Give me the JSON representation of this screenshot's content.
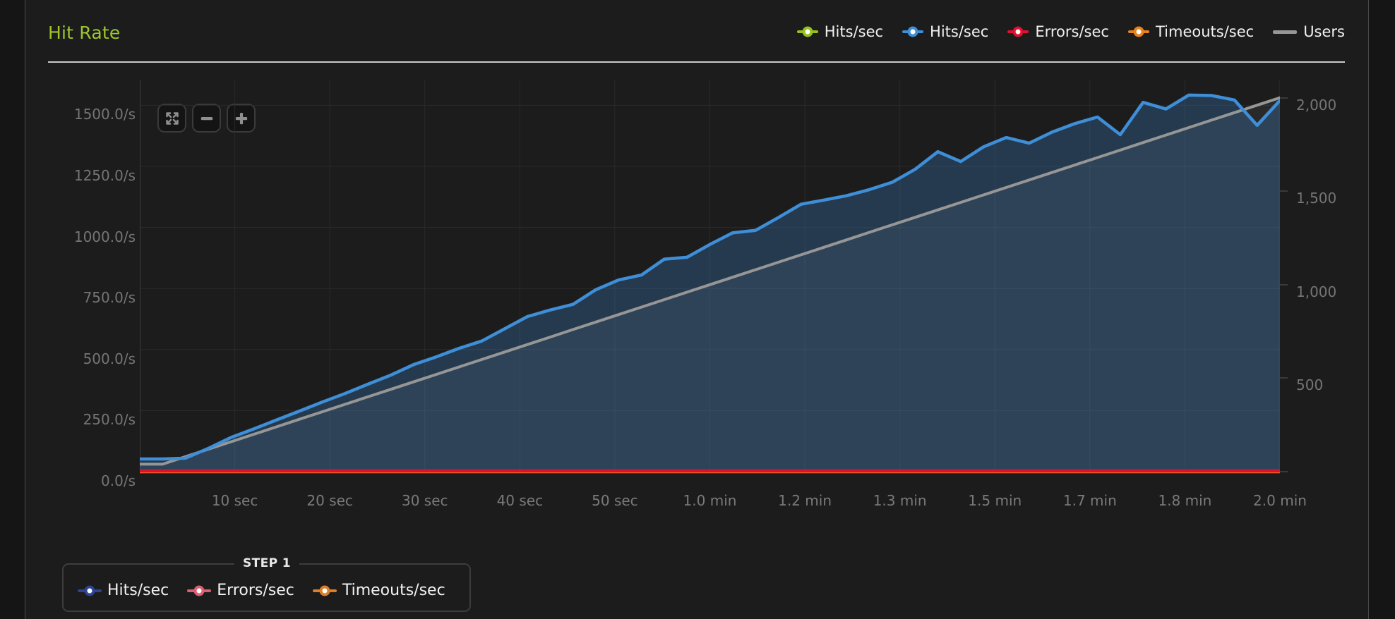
{
  "header": {
    "title": "Hit Rate",
    "title_color": "#9dc62d",
    "legend": [
      {
        "label": "Hits/sec",
        "color": "#95c11f",
        "marker": "dot"
      },
      {
        "label": "Hits/sec",
        "color": "#3e8ed8",
        "marker": "dot"
      },
      {
        "label": "Errors/sec",
        "color": "#e01130",
        "marker": "dot"
      },
      {
        "label": "Timeouts/sec",
        "color": "#e8821c",
        "marker": "dot"
      },
      {
        "label": "Users",
        "color": "#969696",
        "marker": "line"
      }
    ]
  },
  "toolbar": {
    "buttons": [
      {
        "name": "reset-zoom",
        "icon": "expand-icon"
      },
      {
        "name": "zoom-out",
        "icon": "minus-icon"
      },
      {
        "name": "zoom-in",
        "icon": "plus-icon"
      }
    ]
  },
  "chart_data": {
    "type": "area",
    "title": "Hit Rate",
    "legend_position": "top-right",
    "grid": true,
    "x_unit": "time (sec)",
    "x_range_seconds": [
      0,
      120
    ],
    "x_seconds": [
      0,
      2.4,
      4.8,
      7.2,
      9.6,
      12,
      14.4,
      16.8,
      19.2,
      21.6,
      24,
      26.4,
      28.8,
      31.2,
      33.6,
      36,
      38.4,
      40.8,
      43.2,
      45.6,
      48,
      50.4,
      52.8,
      55.2,
      57.6,
      60,
      62.4,
      64.8,
      67.2,
      69.6,
      72,
      74.4,
      76.8,
      79.2,
      81.6,
      84,
      86.4,
      88.8,
      91.2,
      93.6,
      96,
      98.4,
      100.8,
      103.2,
      105.6,
      108,
      110.4,
      112.8,
      115.2,
      117.6,
      120
    ],
    "series": [
      {
        "name": "Hits/sec",
        "axis": "left",
        "color": "#3e8ed8",
        "fill": "rgba(62,142,216,0.27)",
        "values": [
          52,
          52,
          55,
          95,
          140,
          175,
          212,
          248,
          285,
          320,
          358,
          395,
          438,
          470,
          505,
          535,
          585,
          635,
          662,
          685,
          745,
          785,
          805,
          870,
          878,
          930,
          978,
          988,
          1040,
          1095,
          1112,
          1130,
          1155,
          1185,
          1238,
          1310,
          1270,
          1330,
          1368,
          1345,
          1390,
          1425,
          1452,
          1380,
          1512,
          1485,
          1542,
          1540,
          1522,
          1418,
          1520
        ]
      },
      {
        "name": "Users",
        "axis": "right",
        "color": "#969696",
        "fill": "rgba(160,160,160,0.10)",
        "values": [
          40,
          40,
          80,
          120,
          160,
          200,
          240,
          280,
          320,
          360,
          400,
          440,
          480,
          520,
          560,
          600,
          640,
          680,
          720,
          760,
          800,
          840,
          880,
          920,
          960,
          1000,
          1040,
          1080,
          1120,
          1160,
          1200,
          1240,
          1280,
          1320,
          1360,
          1400,
          1440,
          1480,
          1520,
          1560,
          1600,
          1640,
          1680,
          1720,
          1760,
          1800,
          1840,
          1880,
          1920,
          1960,
          2000
        ]
      },
      {
        "name": "Errors/sec",
        "axis": "left",
        "color": "#e01130",
        "values": [
          3,
          3,
          3,
          3,
          3,
          3,
          3,
          3,
          3,
          3,
          3,
          3,
          3,
          3,
          3,
          3,
          3,
          3,
          3,
          3,
          3,
          3,
          3,
          3,
          3,
          3,
          3,
          3,
          3,
          3,
          3,
          3,
          3,
          3,
          3,
          3,
          3,
          3,
          3,
          3,
          3,
          3,
          3,
          3,
          3,
          3,
          3,
          3,
          3,
          3,
          3
        ]
      },
      {
        "name": "Timeouts/sec",
        "axis": "left",
        "color": "#e8821c",
        "values": [
          0,
          0,
          0,
          0,
          0,
          0,
          0,
          0,
          0,
          0,
          0,
          0,
          0,
          0,
          0,
          0,
          0,
          0,
          0,
          0,
          0,
          0,
          0,
          0,
          0,
          0,
          0,
          0,
          0,
          0,
          0,
          0,
          0,
          0,
          0,
          0,
          0,
          0,
          0,
          0,
          0,
          0,
          0,
          0,
          0,
          0,
          0,
          0,
          0,
          0,
          0
        ]
      }
    ],
    "left_axis": {
      "unit": "/s",
      "ticks": [
        {
          "v": 0,
          "label": "0.0/s"
        },
        {
          "v": 250,
          "label": "250.0/s"
        },
        {
          "v": 500,
          "label": "500.0/s"
        },
        {
          "v": 750,
          "label": "750.0/s"
        },
        {
          "v": 1000,
          "label": "1000.0/s"
        },
        {
          "v": 1250,
          "label": "1250.0/s"
        },
        {
          "v": 1500,
          "label": "1500.0/s"
        }
      ]
    },
    "right_axis": {
      "unit": "users",
      "ticks": [
        {
          "v": 0,
          "label": ""
        },
        {
          "v": 500,
          "label": "500"
        },
        {
          "v": 1000,
          "label": "1,000"
        },
        {
          "v": 1500,
          "label": "1,500"
        },
        {
          "v": 2000,
          "label": "2,000"
        }
      ]
    },
    "x_axis": {
      "ticks": [
        {
          "t": 10,
          "label": "10 sec"
        },
        {
          "t": 20,
          "label": "20 sec"
        },
        {
          "t": 30,
          "label": "30 sec"
        },
        {
          "t": 40,
          "label": "40 sec"
        },
        {
          "t": 50,
          "label": "50 sec"
        },
        {
          "t": 60,
          "label": "1.0 min"
        },
        {
          "t": 70,
          "label": "1.2 min"
        },
        {
          "t": 80,
          "label": "1.3 min"
        },
        {
          "t": 90,
          "label": "1.5 min"
        },
        {
          "t": 100,
          "label": "1.7 min"
        },
        {
          "t": 110,
          "label": "1.8 min"
        },
        {
          "t": 120,
          "label": "2.0 min"
        }
      ]
    },
    "colors": {
      "grid": "#2a2a2a",
      "axis_line": "#3a3a3a"
    }
  },
  "step_legend": {
    "title": "STEP 1",
    "items": [
      {
        "label": "Hits/sec",
        "color": "#2c4494"
      },
      {
        "label": "Errors/sec",
        "color": "#dd5f72"
      },
      {
        "label": "Timeouts/sec",
        "color": "#dd7f2a"
      }
    ]
  }
}
